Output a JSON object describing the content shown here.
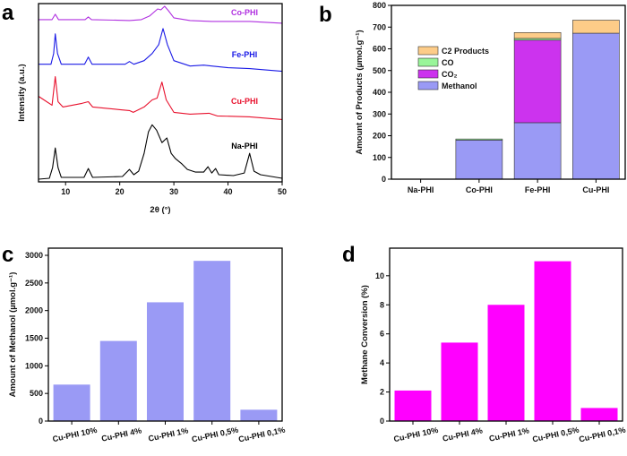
{
  "chart_data": [
    {
      "panel": "a",
      "type": "line",
      "xlabel": "2θ (°)",
      "ylabel": "Intensity (a.u.)",
      "xlim": [
        5,
        50
      ],
      "xticks": [
        10,
        20,
        30,
        40,
        50
      ],
      "yticks_shown": false,
      "ylim": [
        0,
        100
      ],
      "series": [
        {
          "name": "Na-PHI",
          "color": "#000000",
          "points": [
            [
              5,
              1.5
            ],
            [
              7,
              2
            ],
            [
              7.6,
              8
            ],
            [
              8.1,
              19
            ],
            [
              8.6,
              8
            ],
            [
              9.2,
              2.5
            ],
            [
              13.4,
              2.5
            ],
            [
              14.2,
              7.5
            ],
            [
              15,
              2.5
            ],
            [
              20.5,
              3
            ],
            [
              21.8,
              7
            ],
            [
              22.6,
              4
            ],
            [
              23.5,
              6
            ],
            [
              24.5,
              16
            ],
            [
              25.3,
              28
            ],
            [
              26,
              32
            ],
            [
              26.8,
              29
            ],
            [
              27.8,
              22
            ],
            [
              28.7,
              24.6
            ],
            [
              29.5,
              16
            ],
            [
              30.3,
              13
            ],
            [
              31.5,
              10
            ],
            [
              32.5,
              7
            ],
            [
              34,
              5.5
            ],
            [
              35.5,
              5.5
            ],
            [
              36.3,
              8.5
            ],
            [
              37,
              5
            ],
            [
              37.7,
              7.5
            ],
            [
              38.3,
              4
            ],
            [
              41,
              3.5
            ],
            [
              43,
              5
            ],
            [
              44,
              16
            ],
            [
              44.8,
              6
            ],
            [
              46,
              4
            ],
            [
              50,
              2
            ]
          ]
        },
        {
          "name": "Cu-PHI",
          "color": "#e8112d",
          "points": [
            [
              5,
              48
            ],
            [
              6.5,
              45
            ],
            [
              7.5,
              43
            ],
            [
              8.1,
              59
            ],
            [
              8.6,
              45
            ],
            [
              9.5,
              42
            ],
            [
              13,
              44
            ],
            [
              14.2,
              45
            ],
            [
              15,
              42
            ],
            [
              20,
              40.5
            ],
            [
              21.8,
              40
            ],
            [
              22.5,
              39
            ],
            [
              24.5,
              42
            ],
            [
              26,
              46
            ],
            [
              26.9,
              47
            ],
            [
              27.8,
              56
            ],
            [
              28.6,
              46
            ],
            [
              30,
              39
            ],
            [
              33,
              38
            ],
            [
              36.5,
              38.5
            ],
            [
              38,
              37
            ],
            [
              44,
              36.5
            ],
            [
              50,
              35
            ]
          ]
        },
        {
          "name": "Fe-PHI",
          "color": "#1a1ae6",
          "points": [
            [
              5,
              66
            ],
            [
              7.3,
              66
            ],
            [
              7.8,
              72
            ],
            [
              8.1,
              83
            ],
            [
              8.5,
              72
            ],
            [
              9.2,
              66
            ],
            [
              13.5,
              66
            ],
            [
              14.2,
              70
            ],
            [
              14.9,
              66
            ],
            [
              21,
              66
            ],
            [
              21.8,
              67.5
            ],
            [
              22.6,
              66
            ],
            [
              24.5,
              68
            ],
            [
              26,
              72
            ],
            [
              27.2,
              77
            ],
            [
              28,
              86
            ],
            [
              28.8,
              77
            ],
            [
              30,
              68
            ],
            [
              33,
              65
            ],
            [
              35.5,
              65.5
            ],
            [
              37,
              65
            ],
            [
              40,
              64
            ],
            [
              44,
              63.5
            ],
            [
              50,
              62
            ]
          ]
        },
        {
          "name": "Co-PHI",
          "color": "#b030e0",
          "points": [
            [
              5,
              91
            ],
            [
              7.5,
              91
            ],
            [
              8.1,
              94
            ],
            [
              8.7,
              91
            ],
            [
              13.6,
              91
            ],
            [
              14.2,
              92.5
            ],
            [
              14.8,
              91
            ],
            [
              21.8,
              90.5
            ],
            [
              24,
              91
            ],
            [
              25.5,
              93
            ],
            [
              27,
              97
            ],
            [
              27.6,
              96.5
            ],
            [
              28.3,
              98.5
            ],
            [
              29,
              96
            ],
            [
              30,
              92
            ],
            [
              33,
              90.5
            ],
            [
              37,
              90
            ],
            [
              44,
              90
            ],
            [
              50,
              89
            ]
          ]
        }
      ]
    },
    {
      "panel": "b",
      "type": "bar",
      "stacked": true,
      "ylabel": "Amount of Products (µmol.g⁻¹)",
      "ylim": [
        0,
        800
      ],
      "yticks": [
        0,
        100,
        200,
        300,
        400,
        500,
        600,
        700,
        800
      ],
      "categories": [
        "Na-PHI",
        "Co-PHI",
        "Fe-PHI",
        "Cu-PHI"
      ],
      "legend_position": "upper-left",
      "series": [
        {
          "name": "Methanol",
          "color": "#9a9af5",
          "values": [
            0,
            180,
            260,
            672
          ]
        },
        {
          "name": "CO₂",
          "color": "#cc33ee",
          "values": [
            0,
            0,
            380,
            0
          ]
        },
        {
          "name": "CO",
          "color": "#99f599",
          "values": [
            0,
            5,
            8,
            0
          ]
        },
        {
          "name": "C2 Products",
          "color": "#fdcc88",
          "values": [
            0,
            0,
            27,
            60
          ]
        }
      ]
    },
    {
      "panel": "c",
      "type": "bar",
      "ylabel": "Amount of Methanol (µmol.g⁻¹)",
      "ylim": [
        0,
        3130
      ],
      "yticks": [
        0,
        500,
        1000,
        1500,
        2000,
        2500,
        3000
      ],
      "categories": [
        "Cu-PHI 10%",
        "Cu-PHI 4%",
        "Cu-PHI 1%",
        "Cu-PHI 0,5%",
        "Cu-PHI 0,1%"
      ],
      "color": "#9a9af5",
      "values": [
        660,
        1450,
        2150,
        2900,
        205
      ]
    },
    {
      "panel": "d",
      "type": "bar",
      "ylabel": "Methane Conversion (%)",
      "ylim": [
        0,
        11.9
      ],
      "yticks": [
        0,
        2,
        4,
        6,
        8,
        10
      ],
      "categories": [
        "Cu-PHI 10%",
        "Cu-PHI 4%",
        "Cu-PHI 1%",
        "Cu-PHI 0,5%",
        "Cu-PHI 0,1%"
      ],
      "color": "#ff00ff",
      "values": [
        2.1,
        5.4,
        8.0,
        11.0,
        0.9
      ]
    }
  ]
}
